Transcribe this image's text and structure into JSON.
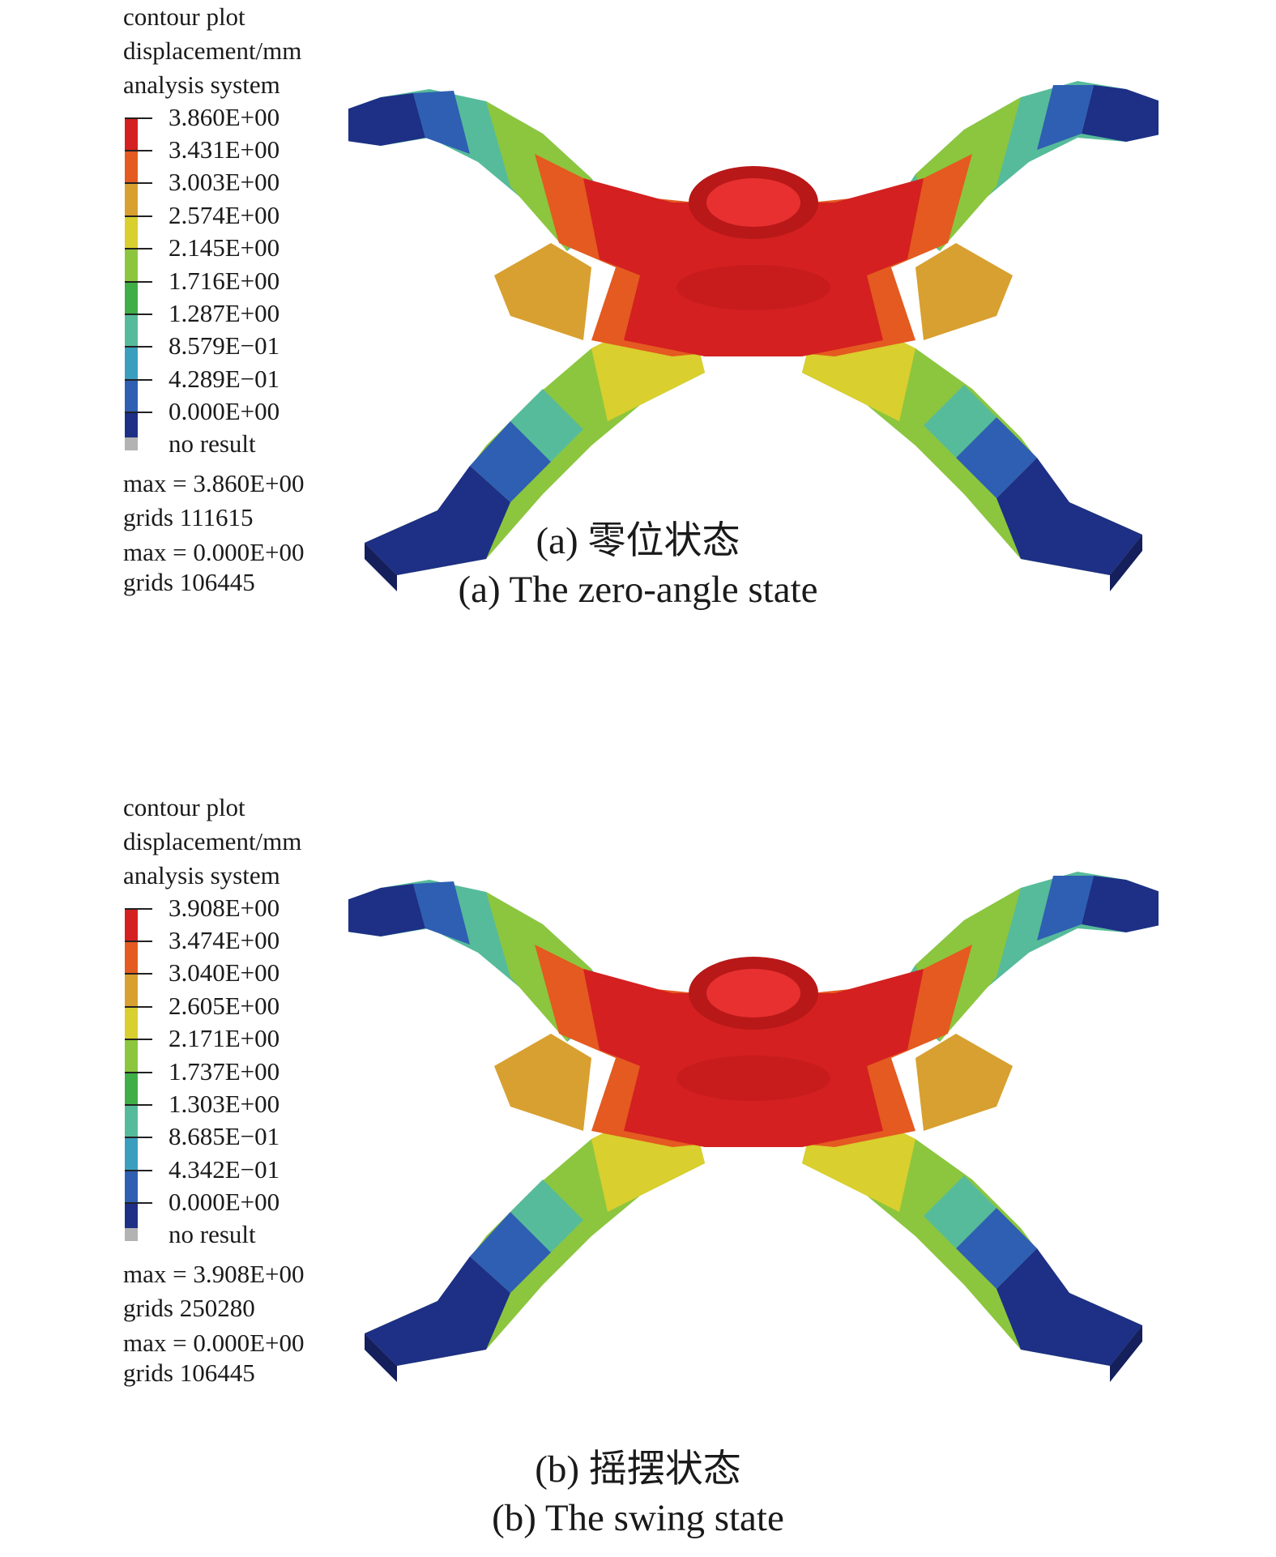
{
  "colors": {
    "scale": [
      "#d42020",
      "#e45a20",
      "#d8a030",
      "#d9cf2e",
      "#8cc63e",
      "#3fae46",
      "#56bb9a",
      "#3a9fbf",
      "#2f5fb3",
      "#1e2f86"
    ],
    "no_result": "#b3b3b3"
  },
  "panels": [
    {
      "legend": {
        "title_lines": [
          "contour plot",
          "displacement/mm",
          "analysis system"
        ],
        "values": [
          "3.860E+00",
          "3.431E+00",
          "3.003E+00",
          "2.574E+00",
          "2.145E+00",
          "1.716E+00",
          "1.287E+00",
          "8.579E−01",
          "4.289E−01",
          "0.000E+00"
        ],
        "no_result": "no result",
        "stats": [
          "max = 3.860E+00",
          "grids 111615",
          "max = 0.000E+00",
          "grids 106445"
        ]
      },
      "caption_cn": "(a) 零位状态",
      "caption_en": "(a) The zero-angle state"
    },
    {
      "legend": {
        "title_lines": [
          "contour plot",
          "displacement/mm",
          "analysis system"
        ],
        "values": [
          "3.908E+00",
          "3.474E+00",
          "3.040E+00",
          "2.605E+00",
          "2.171E+00",
          "1.737E+00",
          "1.303E+00",
          "8.685E−01",
          "4.342E−01",
          "0.000E+00"
        ],
        "no_result": "no result",
        "stats": [
          "max = 3.908E+00",
          "grids 250280",
          "max = 0.000E+00",
          "grids 106445"
        ]
      },
      "caption_cn": "(b) 摇摆状态",
      "caption_en": "(b) The swing state"
    }
  ]
}
